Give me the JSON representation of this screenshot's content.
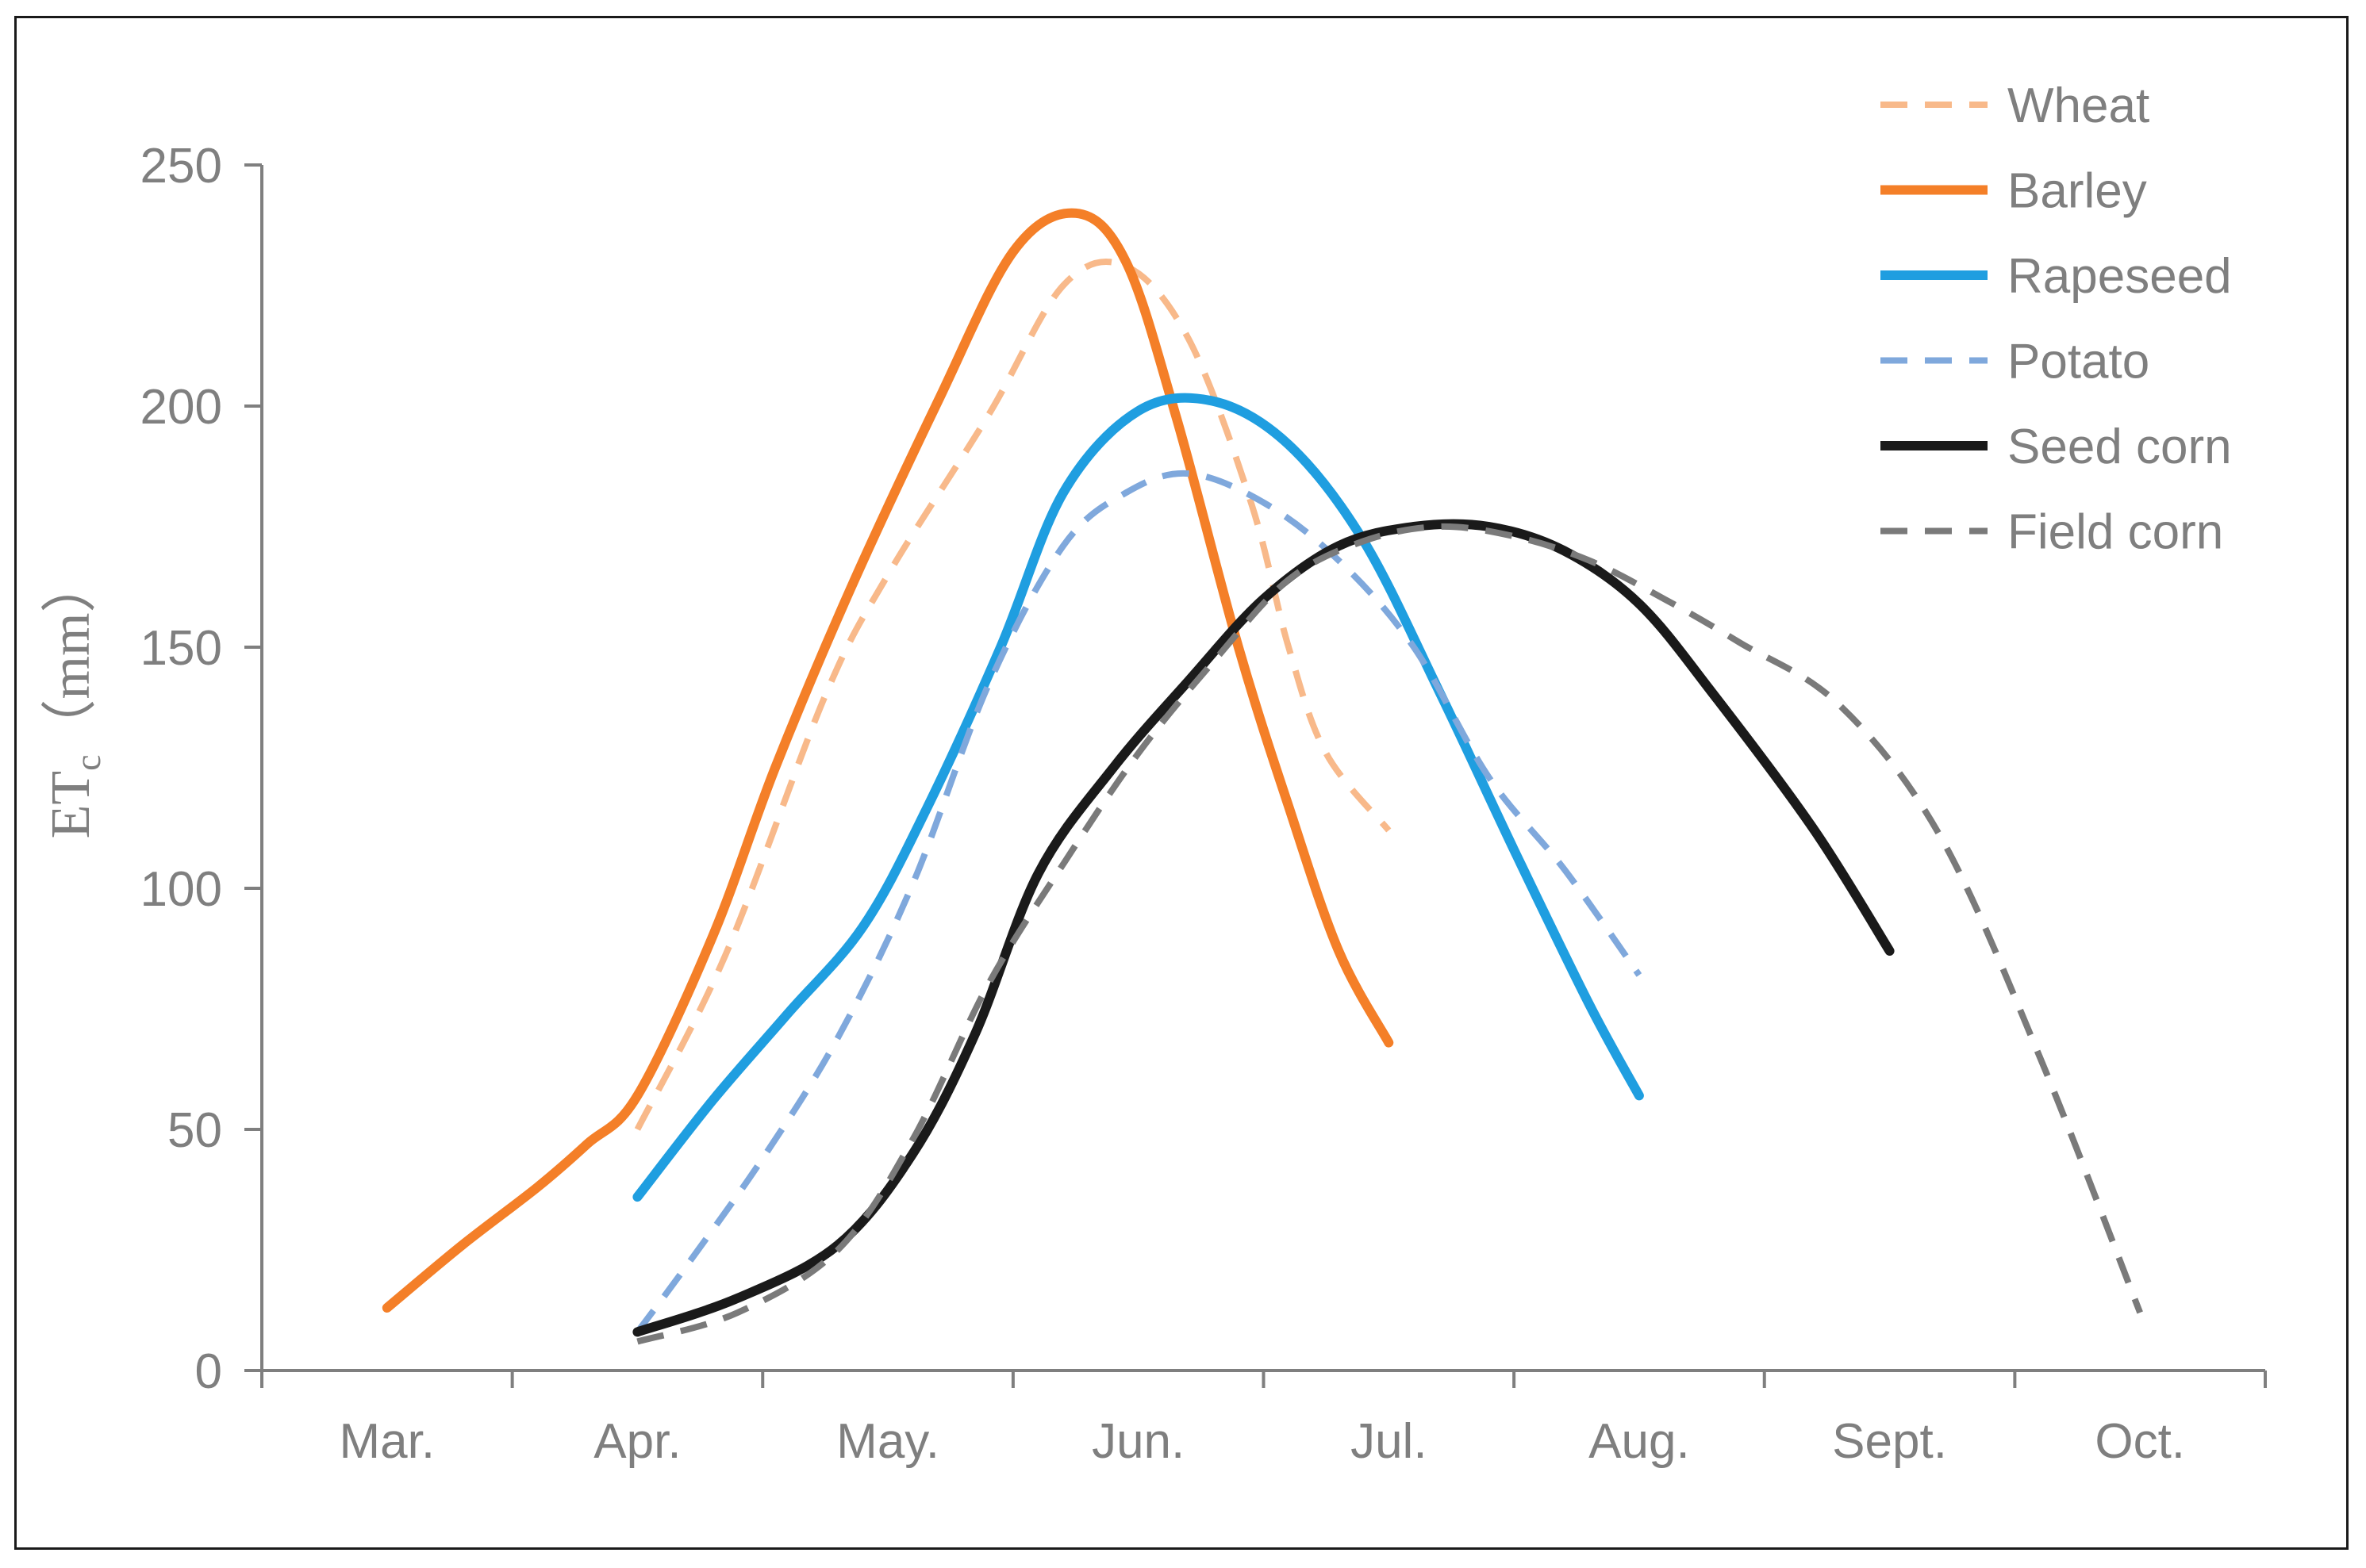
{
  "chart_data": {
    "type": "line",
    "title": "",
    "xlabel": "",
    "ylabel": {
      "main": "ET",
      "sub": "c",
      "unit": "（mm）"
    },
    "ylim": [
      0,
      250
    ],
    "yticks": [
      0,
      50,
      100,
      150,
      200,
      250
    ],
    "ytick_labels": [
      "0",
      "50",
      "100",
      "150",
      "200",
      "250"
    ],
    "categories": [
      "Mar.",
      "Apr.",
      "May.",
      "Jun.",
      "Jul.",
      "Aug.",
      "Sept.",
      "Oct."
    ],
    "legend_position": "top-right",
    "series": [
      {
        "name": "Wheat",
        "color": "#f8b98a",
        "dashed": true,
        "width": 8,
        "x": [
          1.0,
          1.35,
          1.75,
          2.0,
          2.4,
          2.7,
          2.95,
          3.2,
          3.45,
          3.6,
          3.75,
          4.0
        ],
        "y": [
          50,
          86,
          140,
          165,
          198,
          225,
          229,
          214,
          180,
          150,
          128,
          112
        ]
      },
      {
        "name": "Barley",
        "color": "#f47f28",
        "dashed": false,
        "width": 12,
        "x": [
          0.0,
          0.3,
          0.6,
          0.8,
          1.0,
          1.3,
          1.55,
          1.85,
          2.2,
          2.5,
          2.75,
          2.95,
          3.15,
          3.4,
          3.6,
          3.8,
          4.0
        ],
        "y": [
          13,
          26,
          38,
          47,
          57,
          90,
          125,
          162,
          201,
          232,
          240,
          230,
          198,
          150,
          117,
          87,
          68
        ]
      },
      {
        "name": "Rapeseed",
        "color": "#1f9ee0",
        "dashed": false,
        "width": 12,
        "x": [
          1.0,
          1.3,
          1.6,
          1.9,
          2.15,
          2.45,
          2.7,
          3.0,
          3.3,
          3.6,
          3.9,
          4.2,
          4.5,
          4.8,
          5.0
        ],
        "y": [
          36,
          56,
          74,
          92,
          116,
          150,
          182,
          199,
          201,
          192,
          172,
          141,
          108,
          76,
          57
        ]
      },
      {
        "name": "Potato",
        "color": "#7fa8dc",
        "dashed": true,
        "width": 8,
        "x": [
          1.0,
          1.2,
          1.5,
          1.8,
          2.1,
          2.4,
          2.7,
          2.95,
          3.2,
          3.5,
          3.8,
          4.1,
          4.4,
          4.7,
          5.0
        ],
        "y": [
          8,
          22,
          44,
          69,
          101,
          142,
          171,
          182,
          186,
          180,
          168,
          150,
          123,
          104,
          82
        ]
      },
      {
        "name": "Seed corn",
        "color": "#1a1a1a",
        "dashed": false,
        "width": 12,
        "x": [
          1.0,
          1.4,
          1.8,
          2.1,
          2.35,
          2.6,
          2.9,
          3.2,
          3.5,
          3.8,
          4.1,
          4.4,
          4.7,
          5.0,
          5.3,
          5.7,
          6.0
        ],
        "y": [
          8,
          15,
          26,
          45,
          70,
          103,
          125,
          143,
          160,
          171,
          175,
          175,
          170,
          159,
          140,
          112,
          87
        ]
      },
      {
        "name": "Field corn",
        "color": "#7a7a7a",
        "dashed": true,
        "width": 8,
        "x": [
          1.0,
          1.4,
          1.8,
          2.1,
          2.4,
          2.7,
          3.0,
          3.3,
          3.6,
          3.9,
          4.2,
          4.5,
          4.8,
          5.1,
          5.4,
          5.8,
          6.2,
          6.6,
          7.0
        ],
        "y": [
          6,
          12,
          25,
          48,
          80,
          105,
          128,
          147,
          164,
          172,
          175,
          173,
          168,
          160,
          151,
          138,
          111,
          65,
          12
        ]
      }
    ]
  }
}
